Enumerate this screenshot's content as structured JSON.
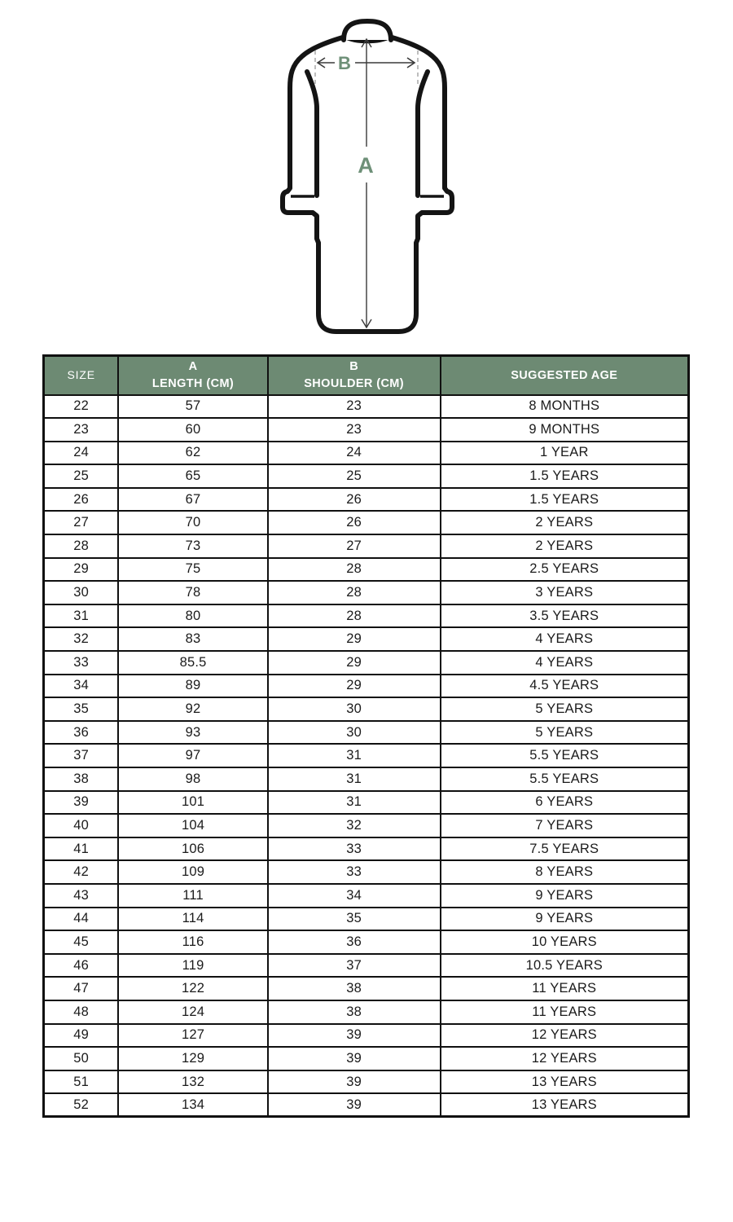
{
  "colors": {
    "header_bg": "#6D8A73",
    "header_text": "#FFFFFF",
    "accent_green": "#6E9078",
    "line_dark": "#141414",
    "border_dark": "#101010"
  },
  "diagram": {
    "length_label": "A",
    "shoulder_label": "B"
  },
  "chart_data": {
    "type": "table",
    "columns": [
      "SIZE",
      "A LENGTH (CM)",
      "B SHOULDER (CM)",
      "SUGGESTED AGE"
    ],
    "header_lines": [
      [
        "SIZE"
      ],
      [
        "A",
        "LENGTH (CM)"
      ],
      [
        "B",
        "SHOULDER (CM)"
      ],
      [
        "SUGGESTED AGE"
      ]
    ],
    "col_widths_pct": [
      11.6,
      23.15,
      26.75,
      38.5
    ],
    "rows": [
      [
        "22",
        "57",
        "23",
        "8 MONTHS"
      ],
      [
        "23",
        "60",
        "23",
        "9 MONTHS"
      ],
      [
        "24",
        "62",
        "24",
        "1 YEAR"
      ],
      [
        "25",
        "65",
        "25",
        "1.5 YEARS"
      ],
      [
        "26",
        "67",
        "26",
        "1.5 YEARS"
      ],
      [
        "27",
        "70",
        "26",
        "2 YEARS"
      ],
      [
        "28",
        "73",
        "27",
        "2 YEARS"
      ],
      [
        "29",
        "75",
        "28",
        "2.5 YEARS"
      ],
      [
        "30",
        "78",
        "28",
        "3 YEARS"
      ],
      [
        "31",
        "80",
        "28",
        "3.5 YEARS"
      ],
      [
        "32",
        "83",
        "29",
        "4 YEARS"
      ],
      [
        "33",
        "85.5",
        "29",
        "4 YEARS"
      ],
      [
        "34",
        "89",
        "29",
        "4.5 YEARS"
      ],
      [
        "35",
        "92",
        "30",
        "5 YEARS"
      ],
      [
        "36",
        "93",
        "30",
        "5 YEARS"
      ],
      [
        "37",
        "97",
        "31",
        "5.5 YEARS"
      ],
      [
        "38",
        "98",
        "31",
        "5.5 YEARS"
      ],
      [
        "39",
        "101",
        "31",
        "6 YEARS"
      ],
      [
        "40",
        "104",
        "32",
        "7 YEARS"
      ],
      [
        "41",
        "106",
        "33",
        "7.5 YEARS"
      ],
      [
        "42",
        "109",
        "33",
        "8 YEARS"
      ],
      [
        "43",
        "111",
        "34",
        "9 YEARS"
      ],
      [
        "44",
        "114",
        "35",
        "9 YEARS"
      ],
      [
        "45",
        "116",
        "36",
        "10 YEARS"
      ],
      [
        "46",
        "119",
        "37",
        "10.5 YEARS"
      ],
      [
        "47",
        "122",
        "38",
        "11 YEARS"
      ],
      [
        "48",
        "124",
        "38",
        "11 YEARS"
      ],
      [
        "49",
        "127",
        "39",
        "12 YEARS"
      ],
      [
        "50",
        "129",
        "39",
        "12 YEARS"
      ],
      [
        "51",
        "132",
        "39",
        "13 YEARS"
      ],
      [
        "52",
        "134",
        "39",
        "13 YEARS"
      ]
    ]
  }
}
